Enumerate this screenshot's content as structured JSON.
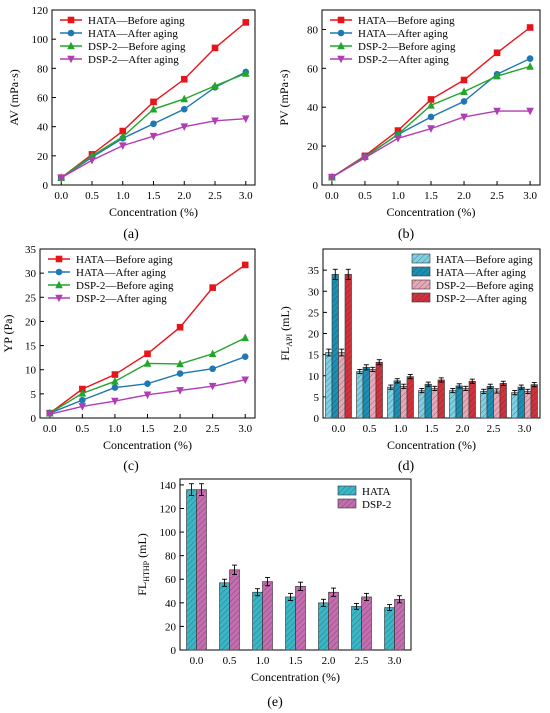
{
  "panels": {
    "a": "(a)",
    "b": "(b)",
    "c": "(c)",
    "d": "(d)",
    "e": "(e)"
  },
  "chart_data": [
    {
      "id": "a",
      "type": "line",
      "x": [
        0.0,
        0.5,
        1.0,
        1.5,
        2.0,
        2.5,
        3.0
      ],
      "xlabel": "Concentration (%)",
      "ylabel": "AV (mPa·s)",
      "xlim": [
        -0.15,
        3.15
      ],
      "ylim": [
        0,
        120
      ],
      "xticks": [
        0.0,
        0.5,
        1.0,
        1.5,
        2.0,
        2.5,
        3.0
      ],
      "yticks": [
        0,
        20,
        40,
        60,
        80,
        100,
        120
      ],
      "legend_position": "top-left",
      "series": [
        {
          "name": "HATA—Before aging",
          "color": "#e8141b",
          "marker": "square",
          "values": [
            5,
            21,
            37,
            57,
            72.5,
            94,
            111.5
          ]
        },
        {
          "name": "HATA—After aging",
          "color": "#1f77b4",
          "marker": "circle",
          "values": [
            5,
            19,
            32,
            42,
            52,
            67,
            77.5
          ]
        },
        {
          "name": "DSP-2—Before aging",
          "color": "#22a52a",
          "marker": "triangle-up",
          "values": [
            5,
            20,
            33,
            52,
            59,
            68,
            76.5
          ]
        },
        {
          "name": "DSP-2—After aging",
          "color": "#b23cb5",
          "marker": "triangle-down",
          "values": [
            5,
            17,
            27,
            33.5,
            40,
            44,
            45.5
          ]
        }
      ]
    },
    {
      "id": "b",
      "type": "line",
      "x": [
        0.0,
        0.5,
        1.0,
        1.5,
        2.0,
        2.5,
        3.0
      ],
      "xlabel": "Concentration (%)",
      "ylabel": "PV (mPa·s)",
      "xlim": [
        -0.15,
        3.15
      ],
      "ylim": [
        0,
        90
      ],
      "xticks": [
        0.0,
        0.5,
        1.0,
        1.5,
        2.0,
        2.5,
        3.0
      ],
      "yticks": [
        0,
        20,
        40,
        60,
        80
      ],
      "legend_position": "top-left",
      "series": [
        {
          "name": "HATA—Before aging",
          "color": "#e8141b",
          "marker": "square",
          "values": [
            4,
            15,
            28,
            44,
            54,
            68,
            81
          ]
        },
        {
          "name": "HATA—After aging",
          "color": "#1f77b4",
          "marker": "circle",
          "values": [
            4,
            14.5,
            26,
            35,
            43,
            57,
            65
          ]
        },
        {
          "name": "DSP-2—Before aging",
          "color": "#22a52a",
          "marker": "triangle-up",
          "values": [
            4,
            14.5,
            26,
            41,
            48,
            56,
            61
          ]
        },
        {
          "name": "DSP-2—After aging",
          "color": "#b23cb5",
          "marker": "triangle-down",
          "values": [
            4,
            14,
            24,
            29,
            35,
            38,
            38
          ]
        }
      ]
    },
    {
      "id": "c",
      "type": "line",
      "x": [
        0.0,
        0.5,
        1.0,
        1.5,
        2.0,
        2.5,
        3.0
      ],
      "xlabel": "Concentration (%)",
      "ylabel": "YP (Pa)",
      "xlim": [
        -0.15,
        3.15
      ],
      "ylim": [
        0,
        35
      ],
      "xticks": [
        0.0,
        0.5,
        1.0,
        1.5,
        2.0,
        2.5,
        3.0
      ],
      "yticks": [
        0,
        5,
        10,
        15,
        20,
        25,
        30,
        35
      ],
      "legend_position": "top-left",
      "series": [
        {
          "name": "HATA—Before aging",
          "color": "#e8141b",
          "marker": "square",
          "values": [
            1,
            6,
            9,
            13.3,
            18.8,
            27,
            31.7
          ]
        },
        {
          "name": "HATA—After aging",
          "color": "#1f77b4",
          "marker": "circle",
          "values": [
            1,
            3.7,
            6.3,
            7.1,
            9.2,
            10.2,
            12.7
          ]
        },
        {
          "name": "DSP-2—Before aging",
          "color": "#22a52a",
          "marker": "triangle-up",
          "values": [
            1,
            5.1,
            7.6,
            11.3,
            11.2,
            13.3,
            16.6
          ]
        },
        {
          "name": "DSP-2—After aging",
          "color": "#b23cb5",
          "marker": "triangle-down",
          "values": [
            0.8,
            2.4,
            3.5,
            4.8,
            5.7,
            6.6,
            7.9
          ]
        }
      ]
    },
    {
      "id": "d",
      "type": "bar",
      "categories": [
        "0.0",
        "0.5",
        "1.0",
        "1.5",
        "2.0",
        "2.5",
        "3.0"
      ],
      "xlabel": "Concentration (%)",
      "ylabel": "FL",
      "ylabel_sub": "API",
      "ylabel_unit": " (mL)",
      "ylim": [
        0,
        40
      ],
      "yticks": [
        0,
        5,
        10,
        15,
        20,
        25,
        30,
        35
      ],
      "legend_position": "top-right",
      "series": [
        {
          "name": "HATA—Before aging",
          "color": "#7fd0e3",
          "hatch": "diag",
          "values": [
            15.5,
            11,
            7.3,
            6.5,
            6.5,
            6.3,
            6
          ],
          "errors": [
            0.8,
            0.5,
            0.5,
            0.5,
            0.5,
            0.5,
            0.5
          ]
        },
        {
          "name": "HATA—After aging",
          "color": "#1b8fb4",
          "hatch": "diag",
          "values": [
            34,
            12,
            8.8,
            8,
            7.6,
            7.5,
            7.3
          ],
          "errors": [
            1.2,
            0.6,
            0.5,
            0.5,
            0.5,
            0.5,
            0.5
          ]
        },
        {
          "name": "DSP-2—Before aging",
          "color": "#e7a9b8",
          "hatch": "diag",
          "values": [
            15.5,
            11.5,
            7.5,
            7,
            7,
            6.4,
            6.3
          ],
          "errors": [
            0.8,
            0.5,
            0.5,
            0.5,
            0.5,
            0.5,
            0.5
          ]
        },
        {
          "name": "DSP-2—After aging",
          "color": "#d2323c",
          "hatch": "diag",
          "values": [
            34,
            13.2,
            9.8,
            9,
            8.7,
            8.2,
            7.9
          ],
          "errors": [
            1.2,
            0.6,
            0.5,
            0.5,
            0.5,
            0.5,
            0.5
          ]
        }
      ]
    },
    {
      "id": "e",
      "type": "bar",
      "categories": [
        "0.0",
        "0.5",
        "1.0",
        "1.5",
        "2.0",
        "2.5",
        "3.0"
      ],
      "xlabel": "Concentration (%)",
      "ylabel": "FL",
      "ylabel_sub": "HTHP",
      "ylabel_unit": " (mL)",
      "ylim": [
        0,
        145
      ],
      "yticks": [
        0,
        20,
        40,
        60,
        80,
        100,
        120,
        140
      ],
      "legend_position": "top-right",
      "series": [
        {
          "name": "HATA",
          "color": "#3ab7c7",
          "hatch": "diag",
          "values": [
            136,
            57,
            49,
            45,
            40,
            37,
            36
          ],
          "errors": [
            5,
            3,
            3,
            3,
            3,
            2.5,
            2.5
          ]
        },
        {
          "name": "DSP-2",
          "color": "#c56db0",
          "hatch": "diag",
          "values": [
            136,
            68,
            58,
            54,
            49,
            45,
            43
          ],
          "errors": [
            5,
            4,
            3.5,
            3.5,
            3.5,
            3,
            3
          ]
        }
      ]
    }
  ]
}
